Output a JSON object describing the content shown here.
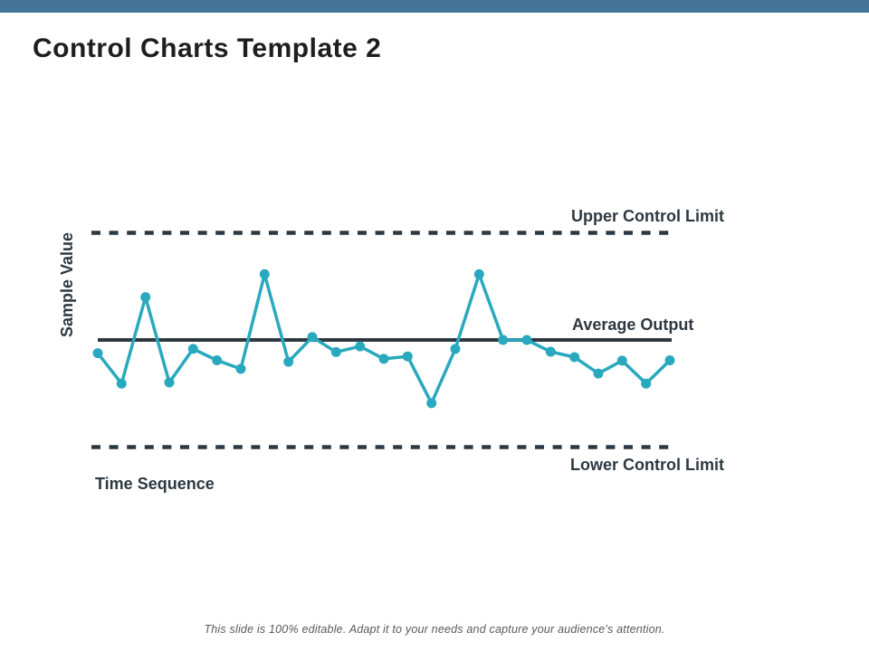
{
  "slide": {
    "title": "Control Charts Template 2",
    "footer": "This slide is 100% editable. Adapt it to your needs and capture your audience's attention."
  },
  "colors": {
    "accent_bar": "#45749B",
    "series_teal": "#29A9BE",
    "line_dark": "#2E3840",
    "title_text": "#1E1E1E",
    "footer_text": "#595959"
  },
  "chart_data": {
    "type": "line",
    "title": "",
    "xlabel": "Time Sequence",
    "ylabel": "Sample Value",
    "x": [
      1,
      2,
      3,
      4,
      5,
      6,
      7,
      8,
      9,
      10,
      11,
      12,
      13,
      14,
      15,
      16,
      17,
      18,
      19,
      20,
      21,
      22,
      23,
      24,
      25
    ],
    "values": [
      -0.37,
      -1.22,
      1.2,
      -1.19,
      -0.25,
      -0.57,
      -0.81,
      1.84,
      -0.61,
      0.08,
      -0.34,
      -0.18,
      -0.53,
      -0.46,
      -1.77,
      -0.25,
      1.84,
      0.0,
      0.0,
      -0.33,
      -0.48,
      -0.94,
      -0.58,
      -1.22,
      -0.57
    ],
    "average": 0,
    "upper_control_limit": 3,
    "lower_control_limit": -3,
    "ylim": [
      -3.6,
      3.7
    ],
    "grid": false,
    "legend": "none",
    "axis_tick_labels": "none",
    "annotations": [
      {
        "text": "Upper Control Limit",
        "attached_to": "upper_control_limit"
      },
      {
        "text": "Average Output",
        "attached_to": "average"
      },
      {
        "text": "Lower Control Limit",
        "attached_to": "lower_control_limit"
      }
    ]
  }
}
